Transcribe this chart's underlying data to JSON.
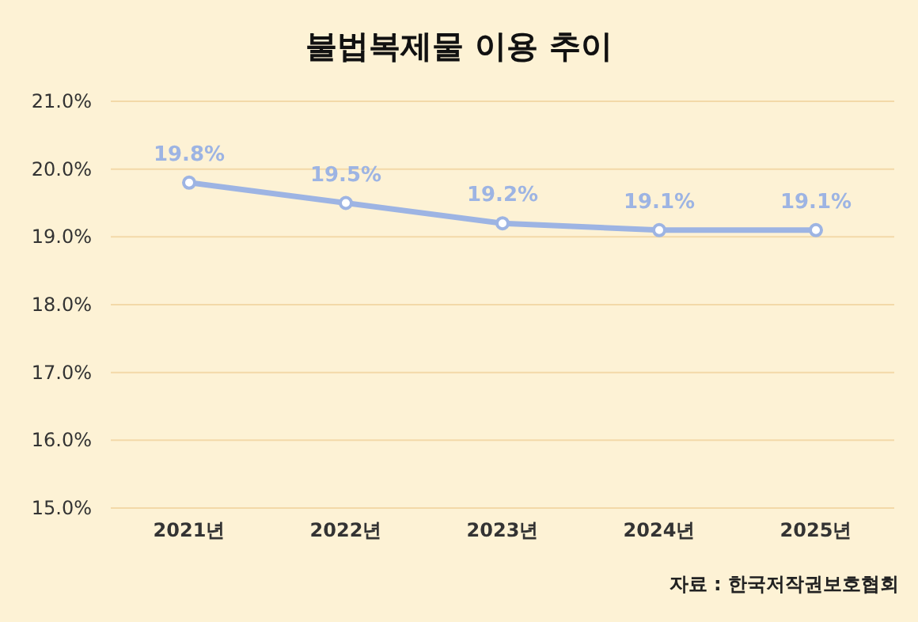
{
  "chart_data": {
    "type": "line",
    "title": "불법복제물 이용 추이",
    "categories": [
      "2021년",
      "2022년",
      "2023년",
      "2024년",
      "2025년"
    ],
    "series": [
      {
        "color": "#9db4e3",
        "values": [
          19.8,
          19.5,
          19.2,
          19.1,
          19.1
        ],
        "value_labels": [
          "19.8%",
          "19.5%",
          "19.2%",
          "19.1%",
          "19.1%"
        ]
      }
    ],
    "ylim": [
      15,
      21
    ],
    "yticks": [
      {
        "value": 15,
        "label": "15.0%"
      },
      {
        "value": 16,
        "label": "16.0%"
      },
      {
        "value": 17,
        "label": "17.0%"
      },
      {
        "value": 18,
        "label": "18.0%"
      },
      {
        "value": 19,
        "label": "19.0%"
      },
      {
        "value": 20,
        "label": "20.0%"
      },
      {
        "value": 21,
        "label": "21.0%"
      }
    ],
    "grid": "y",
    "marker": "circle",
    "line_style": "solid",
    "annotations": [
      "자료 : 한국저작권보호협회"
    ]
  }
}
